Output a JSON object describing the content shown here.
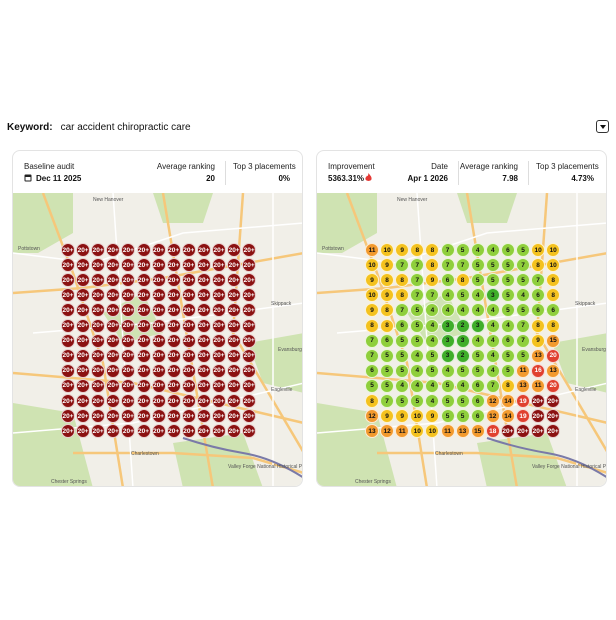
{
  "keyword": {
    "label": "Keyword:",
    "value": "car accident chiropractic care"
  },
  "cards": [
    {
      "stats": [
        {
          "label": "Baseline audit",
          "value": "Dec 11 2025"
        },
        {
          "label": "Average ranking",
          "value": "20"
        },
        {
          "label": "Top 3 placements",
          "value": "0%"
        }
      ],
      "map_labels": [
        "New Hanover",
        "Pottstown",
        "Skippack",
        "Evansburg State Park",
        "Eagleville",
        "Charlestown",
        "Chester Springs",
        "Valley Forge National Historical Park"
      ],
      "grid": [
        [
          "20+",
          "20+",
          "20+",
          "20+",
          "20+",
          "20+",
          "20+",
          "20+",
          "20+",
          "20+",
          "20+",
          "20+",
          "20+"
        ],
        [
          "20+",
          "20+",
          "20+",
          "20+",
          "20+",
          "20+",
          "20+",
          "20+",
          "20+",
          "20+",
          "20+",
          "20+",
          "20+"
        ],
        [
          "20+",
          "20+",
          "20+",
          "20+",
          "20+",
          "20+",
          "20+",
          "20+",
          "20+",
          "20+",
          "20+",
          "20+",
          "20+"
        ],
        [
          "20+",
          "20+",
          "20+",
          "20+",
          "20+",
          "20+",
          "20+",
          "20+",
          "20+",
          "20+",
          "20+",
          "20+",
          "20+"
        ],
        [
          "20+",
          "20+",
          "20+",
          "20+",
          "20+",
          "20+",
          "20+",
          "20+",
          "20+",
          "20+",
          "20+",
          "20+",
          "20+"
        ],
        [
          "20+",
          "20+",
          "20+",
          "20+",
          "20+",
          "20+",
          "20+",
          "20+",
          "20+",
          "20+",
          "20+",
          "20+",
          "20+"
        ],
        [
          "20+",
          "20+",
          "20+",
          "20+",
          "20+",
          "20+",
          "20+",
          "20+",
          "20+",
          "20+",
          "20+",
          "20+",
          "20+"
        ],
        [
          "20+",
          "20+",
          "20+",
          "20+",
          "20+",
          "20+",
          "20+",
          "20+",
          "20+",
          "20+",
          "20+",
          "20+",
          "20+"
        ],
        [
          "20+",
          "20+",
          "20+",
          "20+",
          "20+",
          "20+",
          "20+",
          "20+",
          "20+",
          "20+",
          "20+",
          "20+",
          "20+"
        ],
        [
          "20+",
          "20+",
          "20+",
          "20+",
          "20+",
          "20+",
          "20+",
          "20+",
          "20+",
          "20+",
          "20+",
          "20+",
          "20+"
        ],
        [
          "20+",
          "20+",
          "20+",
          "20+",
          "20+",
          "20+",
          "20+",
          "20+",
          "20+",
          "20+",
          "20+",
          "20+",
          "20+"
        ],
        [
          "20+",
          "20+",
          "20+",
          "20+",
          "20+",
          "20+",
          "20+",
          "20+",
          "20+",
          "20+",
          "20+",
          "20+",
          "20+"
        ],
        [
          "20+",
          "20+",
          "20+",
          "20+",
          "20+",
          "20+",
          "20+",
          "20+",
          "20+",
          "20+",
          "20+",
          "20+",
          "20+"
        ]
      ]
    },
    {
      "stats": [
        {
          "label": "Improvement",
          "value": "5363.31%"
        },
        {
          "label": "Date",
          "value": "Apr 1 2026"
        },
        {
          "label": "Average ranking",
          "value": "7.98"
        },
        {
          "label": "Top 3 placements",
          "value": "4.73%"
        }
      ],
      "map_labels": [
        "New Hanover",
        "Pottstown",
        "Skippack",
        "Evansburg State Park",
        "Eagleville",
        "Charlestown",
        "Chester Springs",
        "Valley Forge National Historical Park"
      ],
      "grid": [
        [
          11,
          10,
          9,
          8,
          8,
          7,
          5,
          4,
          4,
          6,
          5,
          10,
          10
        ],
        [
          10,
          9,
          7,
          7,
          8,
          7,
          7,
          5,
          5,
          5,
          7,
          8,
          10
        ],
        [
          9,
          8,
          8,
          7,
          9,
          6,
          8,
          5,
          5,
          5,
          5,
          7,
          8
        ],
        [
          10,
          9,
          8,
          7,
          7,
          4,
          5,
          4,
          3,
          5,
          4,
          6,
          8
        ],
        [
          9,
          8,
          7,
          5,
          4,
          4,
          4,
          4,
          4,
          5,
          5,
          6,
          6
        ],
        [
          8,
          8,
          6,
          5,
          4,
          3,
          2,
          3,
          4,
          4,
          7,
          8,
          8
        ],
        [
          7,
          6,
          5,
          5,
          4,
          3,
          3,
          4,
          4,
          6,
          7,
          9,
          15
        ],
        [
          7,
          5,
          5,
          4,
          5,
          3,
          2,
          5,
          4,
          5,
          5,
          13,
          20
        ],
        [
          6,
          5,
          5,
          4,
          5,
          4,
          5,
          5,
          4,
          5,
          11,
          16,
          13
        ],
        [
          5,
          5,
          4,
          4,
          4,
          5,
          4,
          6,
          7,
          8,
          13,
          11,
          20
        ],
        [
          8,
          7,
          5,
          5,
          4,
          5,
          5,
          6,
          12,
          14,
          19,
          "20+",
          "20+"
        ],
        [
          12,
          9,
          9,
          10,
          9,
          5,
          5,
          6,
          12,
          14,
          19,
          "20+",
          "20+"
        ],
        [
          13,
          12,
          11,
          10,
          10,
          11,
          13,
          15,
          18,
          "20+",
          "20+",
          "20+",
          "20+"
        ]
      ]
    }
  ]
}
